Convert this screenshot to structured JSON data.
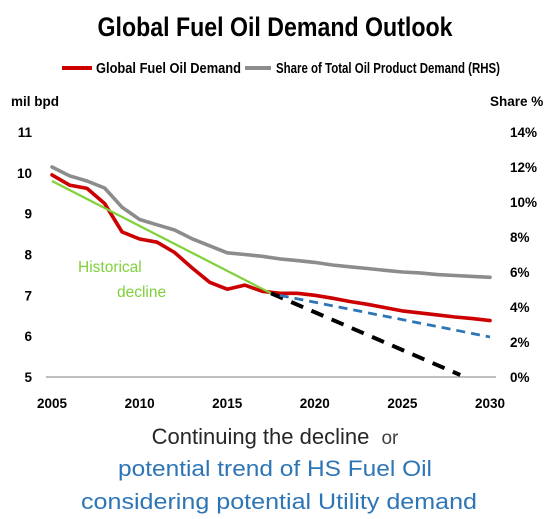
{
  "chart_data": {
    "type": "line",
    "title": "Global Fuel Oil Demand Outlook",
    "left_axis": {
      "unit_label": "mil bpd",
      "ylim": [
        5,
        11
      ],
      "ticks": [
        "5",
        "6",
        "7",
        "8",
        "9",
        "10",
        "11"
      ]
    },
    "right_axis": {
      "unit_label": "Share %",
      "ylim": [
        0,
        14
      ],
      "ticks": [
        "0%",
        "2%",
        "4%",
        "6%",
        "8%",
        "10%",
        "12%",
        "14%"
      ]
    },
    "x_axis": {
      "xlim": [
        2005,
        2030
      ],
      "ticks": [
        "2005",
        "2010",
        "2015",
        "2020",
        "2025",
        "2030"
      ]
    },
    "grid": false,
    "legend_position": "top",
    "colors": {
      "demand": "#cc0000",
      "share": "#8c8c8c",
      "trend": "#7fd13b",
      "continuation": "#000000",
      "potential": "#2e75b6"
    },
    "series": [
      {
        "name": "Global Fuel Oil Demand",
        "axis": "left",
        "color": "#cc0000",
        "points": [
          [
            2005,
            9.95
          ],
          [
            2006,
            9.7
          ],
          [
            2007,
            9.62
          ],
          [
            2008,
            9.25
          ],
          [
            2009,
            8.55
          ],
          [
            2010,
            8.38
          ],
          [
            2011,
            8.3
          ],
          [
            2012,
            8.05
          ],
          [
            2013,
            7.67
          ],
          [
            2014,
            7.32
          ],
          [
            2015,
            7.15
          ],
          [
            2016,
            7.25
          ],
          [
            2017,
            7.1
          ],
          [
            2018,
            7.05
          ],
          [
            2019,
            7.05
          ],
          [
            2020,
            7.0
          ],
          [
            2021,
            6.93
          ],
          [
            2022,
            6.85
          ],
          [
            2023,
            6.78
          ],
          [
            2024,
            6.7
          ],
          [
            2025,
            6.62
          ],
          [
            2026,
            6.57
          ],
          [
            2027,
            6.52
          ],
          [
            2028,
            6.47
          ],
          [
            2029,
            6.43
          ],
          [
            2030,
            6.38
          ]
        ]
      },
      {
        "name": "Share of Total Oil Product Demand (RHS)",
        "axis": "right",
        "color": "#8c8c8c",
        "points": [
          [
            2005,
            12.0
          ],
          [
            2006,
            11.5
          ],
          [
            2007,
            11.2
          ],
          [
            2008,
            10.8
          ],
          [
            2009,
            9.7
          ],
          [
            2010,
            9.0
          ],
          [
            2011,
            8.7
          ],
          [
            2012,
            8.4
          ],
          [
            2013,
            7.9
          ],
          [
            2014,
            7.5
          ],
          [
            2015,
            7.1
          ],
          [
            2016,
            7.0
          ],
          [
            2017,
            6.9
          ],
          [
            2018,
            6.75
          ],
          [
            2019,
            6.65
          ],
          [
            2020,
            6.55
          ],
          [
            2021,
            6.4
          ],
          [
            2022,
            6.3
          ],
          [
            2023,
            6.2
          ],
          [
            2024,
            6.1
          ],
          [
            2025,
            6.0
          ],
          [
            2026,
            5.95
          ],
          [
            2027,
            5.85
          ],
          [
            2028,
            5.8
          ],
          [
            2029,
            5.75
          ],
          [
            2030,
            5.7
          ]
        ]
      }
    ],
    "trend_lines": [
      {
        "label": "Historical decline",
        "style": "solid",
        "color": "#7fd13b",
        "points": [
          [
            2005,
            9.8
          ],
          [
            2017.5,
            7.05
          ]
        ]
      },
      {
        "label": "Continuing the decline",
        "style": "dashed",
        "color": "#000000",
        "points": [
          [
            2017.5,
            7.05
          ],
          [
            2028.3,
            5.05
          ]
        ]
      },
      {
        "label": "potential trend of HS Fuel Oil considering potential Utility demand",
        "style": "dashed",
        "color": "#2e75b6",
        "points": [
          [
            2018,
            7.0
          ],
          [
            2030,
            5.98
          ]
        ]
      }
    ],
    "annotations": {
      "historical_line1": "Historical",
      "historical_line2": "decline",
      "caption_black": "Continuing the decline",
      "caption_or": "or",
      "caption_blue_line1": "potential trend of HS Fuel Oil",
      "caption_blue_line2": "considering potential Utility demand"
    }
  }
}
